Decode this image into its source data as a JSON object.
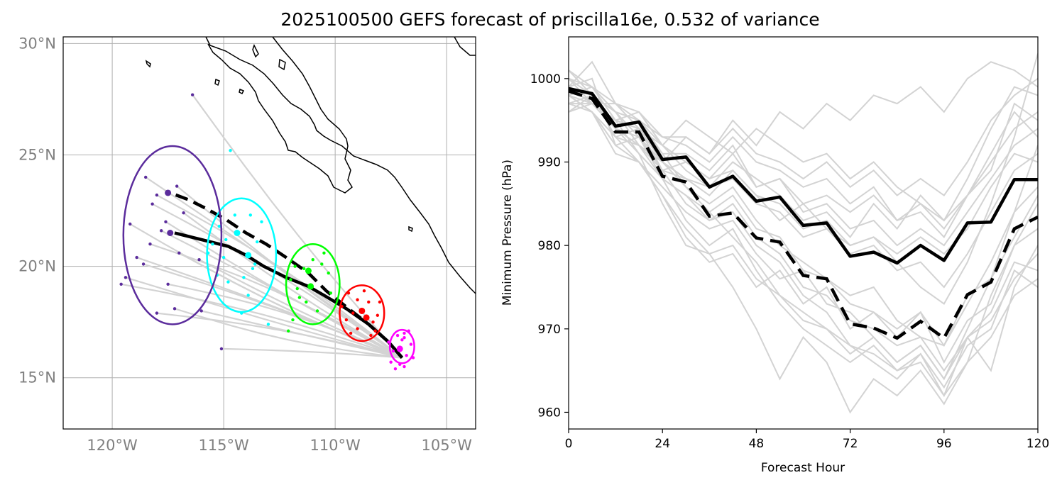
{
  "title": "2025100500 GEFS forecast of priscilla16e, 0.532 of variance",
  "colors": {
    "ensemble": "#d3d3d3",
    "mean": "#000000",
    "coast": "#000000",
    "grid": "#b0b0b0",
    "geo_tick": "#808080",
    "cluster": [
      "#ff00ff",
      "#ff0000",
      "#00ff00",
      "#00ffff",
      "#5b2c9c"
    ]
  },
  "chart_data": [
    {
      "type": "map",
      "name": "track-map",
      "lon_range": [
        -122.2,
        -103.7
      ],
      "lat_range": [
        12.7,
        30.3
      ],
      "xticks": [
        -120,
        -115,
        -110,
        -105
      ],
      "yticks": [
        15,
        20,
        25,
        30
      ],
      "xtick_labels": [
        "120°W",
        "115°W",
        "110°W",
        "105°W"
      ],
      "ytick_labels": [
        "15°N",
        "20°N",
        "25°N",
        "30°N"
      ],
      "grid": true,
      "mean_track_solid": [
        [
          -107.0,
          15.9
        ],
        [
          -107.6,
          16.6
        ],
        [
          -108.5,
          17.4
        ],
        [
          -109.5,
          18.1
        ],
        [
          -110.5,
          18.7
        ],
        [
          -111.2,
          19.1
        ],
        [
          -112.2,
          19.5
        ],
        [
          -113.2,
          20.0
        ],
        [
          -114.0,
          20.5
        ],
        [
          -114.8,
          20.9
        ],
        [
          -115.6,
          21.1
        ],
        [
          -116.4,
          21.3
        ],
        [
          -117.2,
          21.5
        ]
      ],
      "mean_track_dashed": [
        [
          -107.0,
          15.9
        ],
        [
          -107.6,
          16.6
        ],
        [
          -108.5,
          17.4
        ],
        [
          -109.4,
          18.1
        ],
        [
          -110.4,
          18.9
        ],
        [
          -111.2,
          19.7
        ],
        [
          -112.2,
          20.4
        ],
        [
          -113.1,
          21.0
        ],
        [
          -114.0,
          21.5
        ],
        [
          -114.9,
          22.1
        ],
        [
          -115.8,
          22.6
        ],
        [
          -116.6,
          23.0
        ],
        [
          -117.4,
          23.3
        ]
      ],
      "clusters": [
        {
          "forecast_hour": 24,
          "center": [
            -107.0,
            16.4
          ],
          "semi_axes_deg": [
            0.55,
            0.75
          ],
          "mean_points": [
            [
              -107.1,
              16.3
            ]
          ],
          "points": [
            [
              -106.8,
              16.0
            ],
            [
              -107.2,
              16.9
            ],
            [
              -106.9,
              15.5
            ],
            [
              -107.4,
              16.2
            ],
            [
              -106.6,
              16.5
            ],
            [
              -107.5,
              15.7
            ],
            [
              -107.0,
              16.7
            ],
            [
              -106.7,
              17.1
            ],
            [
              -107.3,
              15.4
            ],
            [
              -106.9,
              16.8
            ],
            [
              -107.6,
              16.6
            ],
            [
              -106.5,
              15.9
            ],
            [
              -107.1,
              15.6
            ],
            [
              -106.9,
              17.0
            ]
          ]
        },
        {
          "forecast_hour": 48,
          "center": [
            -108.8,
            17.9
          ],
          "semi_axes_deg": [
            1.0,
            1.25
          ],
          "mean_points": [
            [
              -108.6,
              17.7
            ],
            [
              -108.8,
              18.0
            ]
          ],
          "points": [
            [
              -109.0,
              18.5
            ],
            [
              -108.3,
              17.5
            ],
            [
              -109.5,
              17.6
            ],
            [
              -108.0,
              18.4
            ],
            [
              -109.3,
              17.0
            ],
            [
              -108.7,
              18.9
            ],
            [
              -109.7,
              18.2
            ],
            [
              -108.4,
              16.9
            ],
            [
              -108.1,
              17.8
            ],
            [
              -109.0,
              17.2
            ],
            [
              -109.4,
              18.8
            ],
            [
              -108.5,
              18.4
            ],
            [
              -109.2,
              17.9
            ],
            [
              -108.2,
              17.1
            ]
          ]
        },
        {
          "forecast_hour": 72,
          "center": [
            -111.0,
            19.2
          ],
          "semi_axes_deg": [
            1.2,
            1.8
          ],
          "mean_points": [
            [
              -111.2,
              19.8
            ],
            [
              -111.1,
              19.1
            ]
          ],
          "points": [
            [
              -110.5,
              20.6
            ],
            [
              -111.8,
              20.0
            ],
            [
              -112.0,
              19.4
            ],
            [
              -110.3,
              19.7
            ],
            [
              -111.6,
              18.6
            ],
            [
              -110.8,
              18.0
            ],
            [
              -111.9,
              17.6
            ],
            [
              -112.1,
              17.1
            ],
            [
              -110.6,
              20.1
            ],
            [
              -111.3,
              18.4
            ],
            [
              -111.0,
              20.3
            ],
            [
              -110.2,
              18.8
            ],
            [
              -111.7,
              19.0
            ],
            [
              -111.4,
              19.9
            ]
          ]
        },
        {
          "forecast_hour": 96,
          "center": [
            -114.2,
            20.5
          ],
          "semi_axes_deg": [
            1.55,
            2.55
          ],
          "mean_points": [
            [
              -114.4,
              21.5
            ],
            [
              -113.9,
              20.5
            ]
          ],
          "points": [
            [
              -114.5,
              22.3
            ],
            [
              -113.3,
              22.0
            ],
            [
              -115.2,
              21.8
            ],
            [
              -113.5,
              21.1
            ],
            [
              -115.0,
              20.4
            ],
            [
              -113.6,
              20.1
            ],
            [
              -114.8,
              19.3
            ],
            [
              -113.9,
              18.7
            ],
            [
              -115.5,
              21.0
            ],
            [
              -114.2,
              17.9
            ],
            [
              -113.0,
              17.4
            ],
            [
              -114.7,
              25.2
            ],
            [
              -115.7,
              20.6
            ],
            [
              -114.1,
              19.5
            ],
            [
              -113.7,
              19.9
            ],
            [
              -114.9,
              21.2
            ],
            [
              -113.8,
              22.3
            ],
            [
              -115.3,
              19.6
            ]
          ]
        },
        {
          "forecast_hour": 120,
          "center": [
            -117.3,
            21.4
          ],
          "semi_axes_deg": [
            2.2,
            4.0
          ],
          "mean_points": [
            [
              -117.5,
              23.3
            ],
            [
              -117.4,
              21.5
            ]
          ],
          "points": [
            [
              -118.5,
              24.0
            ],
            [
              -117.1,
              23.6
            ],
            [
              -118.2,
              22.8
            ],
            [
              -119.2,
              21.9
            ],
            [
              -117.8,
              21.6
            ],
            [
              -118.3,
              21.0
            ],
            [
              -117.0,
              20.6
            ],
            [
              -118.6,
              20.1
            ],
            [
              -119.4,
              19.5
            ],
            [
              -117.5,
              19.2
            ],
            [
              -117.2,
              18.1
            ],
            [
              -118.0,
              17.9
            ],
            [
              -116.1,
              20.3
            ],
            [
              -116.0,
              18.0
            ],
            [
              -118.9,
              20.4
            ],
            [
              -117.6,
              22.0
            ],
            [
              -119.6,
              19.2
            ],
            [
              -116.4,
              27.7
            ],
            [
              -115.1,
              16.3
            ],
            [
              -118.0,
              23.2
            ],
            [
              -116.8,
              22.4
            ]
          ]
        }
      ]
    },
    {
      "type": "line",
      "name": "pressure-chart",
      "xlabel": "Forecast Hour",
      "ylabel": "Minimum Pressure (hPa)",
      "xlim": [
        0,
        120
      ],
      "ylim": [
        958,
        1005
      ],
      "xticks": [
        0,
        24,
        48,
        72,
        96,
        120
      ],
      "yticks": [
        960,
        970,
        980,
        990,
        1000
      ],
      "x": [
        0,
        6,
        12,
        18,
        24,
        30,
        36,
        42,
        48,
        54,
        60,
        66,
        72,
        78,
        84,
        90,
        96,
        102,
        108,
        114,
        120
      ],
      "mean_solid": [
        998.8,
        998.2,
        994.3,
        994.8,
        990.3,
        990.6,
        987.0,
        988.3,
        985.3,
        985.8,
        982.4,
        982.7,
        978.7,
        979.2,
        977.9,
        980.0,
        978.2,
        982.7,
        982.8,
        987.9,
        987.9
      ],
      "mean_dashed": [
        998.5,
        997.6,
        993.6,
        993.6,
        988.3,
        987.6,
        983.5,
        983.9,
        980.9,
        980.4,
        976.4,
        976.0,
        970.6,
        970.1,
        968.9,
        970.9,
        968.9,
        974.1,
        975.6,
        982.0,
        983.4
      ],
      "ensemble": [
        [
          1000,
          999,
          996,
          993,
          990,
          993,
          991,
          995,
          992,
          996,
          994,
          997,
          995,
          998,
          997,
          999,
          996,
          1000,
          1002,
          1001,
          999
        ],
        [
          999,
          1002,
          997,
          994,
          992,
          995,
          993,
          991,
          994,
          992,
          990,
          991,
          988,
          990,
          987,
          985,
          983,
          986,
          989,
          997,
          995
        ],
        [
          1001,
          998,
          994,
          992,
          989,
          988,
          986,
          989,
          986,
          983,
          985,
          982,
          980,
          981,
          978,
          975,
          973,
          978,
          985,
          993,
          1003
        ],
        [
          998,
          996,
          993,
          990,
          987,
          984,
          982,
          983,
          979,
          976,
          977,
          973,
          972,
          969,
          966,
          968,
          964,
          970,
          976,
          984,
          992
        ],
        [
          997,
          997,
          995,
          991,
          985,
          980,
          979,
          975,
          970,
          964,
          969,
          966,
          960,
          964,
          962,
          965,
          961,
          966,
          974,
          980,
          985
        ],
        [
          999,
          1000,
          992,
          993,
          988,
          986,
          984,
          981,
          978,
          974,
          972,
          970,
          968,
          966,
          964,
          967,
          962,
          969,
          972,
          978,
          977
        ],
        [
          996,
          998,
          996,
          992,
          990,
          987,
          985,
          987,
          983,
          980,
          978,
          976,
          974,
          975,
          971,
          969,
          968,
          974,
          976,
          981,
          986
        ],
        [
          1000,
          997,
          997,
          995,
          991,
          991,
          989,
          992,
          987,
          988,
          984,
          985,
          982,
          983,
          980,
          982,
          980,
          984,
          988,
          992,
          994
        ],
        [
          998,
          999,
          995,
          996,
          993,
          992,
          990,
          993,
          990,
          989,
          987,
          988,
          985,
          987,
          983,
          984,
          981,
          986,
          991,
          996,
          993
        ],
        [
          997,
          996,
          991,
          990,
          986,
          981,
          978,
          979,
          975,
          977,
          973,
          975,
          970,
          972,
          969,
          972,
          966,
          971,
          973,
          980,
          982
        ],
        [
          999,
          998,
          993,
          994,
          989,
          985,
          983,
          985,
          981,
          979,
          975,
          974,
          971,
          970,
          968,
          969,
          965,
          969,
          965,
          975,
          980
        ],
        [
          1000,
          999,
          997,
          996,
          992,
          989,
          987,
          988,
          985,
          984,
          981,
          982,
          979,
          980,
          977,
          978,
          975,
          979,
          984,
          989,
          991
        ],
        [
          998,
          997,
          994,
          991,
          988,
          983,
          980,
          982,
          977,
          973,
          970,
          968,
          966,
          968,
          965,
          967,
          963,
          968,
          970,
          977,
          975
        ],
        [
          996,
          997,
          995,
          994,
          990,
          988,
          987,
          990,
          988,
          986,
          983,
          984,
          981,
          985,
          982,
          986,
          983,
          988,
          994,
          999,
          998
        ],
        [
          999,
          998,
          993,
          992,
          988,
          986,
          983,
          984,
          980,
          978,
          974,
          972,
          968,
          967,
          965,
          966,
          962,
          966,
          969,
          974,
          976
        ],
        [
          1001,
          999,
          996,
          995,
          993,
          993,
          991,
          994,
          991,
          990,
          988,
          990,
          987,
          989,
          986,
          988,
          986,
          990,
          995,
          998,
          1000
        ],
        [
          998,
          996,
          992,
          990,
          986,
          982,
          979,
          980,
          976,
          974,
          971,
          970,
          967,
          969,
          966,
          968,
          964,
          969,
          971,
          976,
          979
        ],
        [
          997,
          998,
          994,
          993,
          989,
          990,
          988,
          989,
          986,
          985,
          982,
          983,
          980,
          981,
          979,
          981,
          979,
          982,
          987,
          991,
          990
        ],
        [
          999,
          997,
          995,
          994,
          991,
          987,
          984,
          986,
          982,
          981,
          977,
          976,
          973,
          972,
          970,
          972,
          968,
          973,
          978,
          984,
          987
        ],
        [
          1000,
          998,
          996,
          995,
          992,
          990,
          988,
          991,
          987,
          988,
          985,
          986,
          984,
          986,
          983,
          985,
          982,
          986,
          990,
          994,
          996
        ]
      ]
    }
  ]
}
